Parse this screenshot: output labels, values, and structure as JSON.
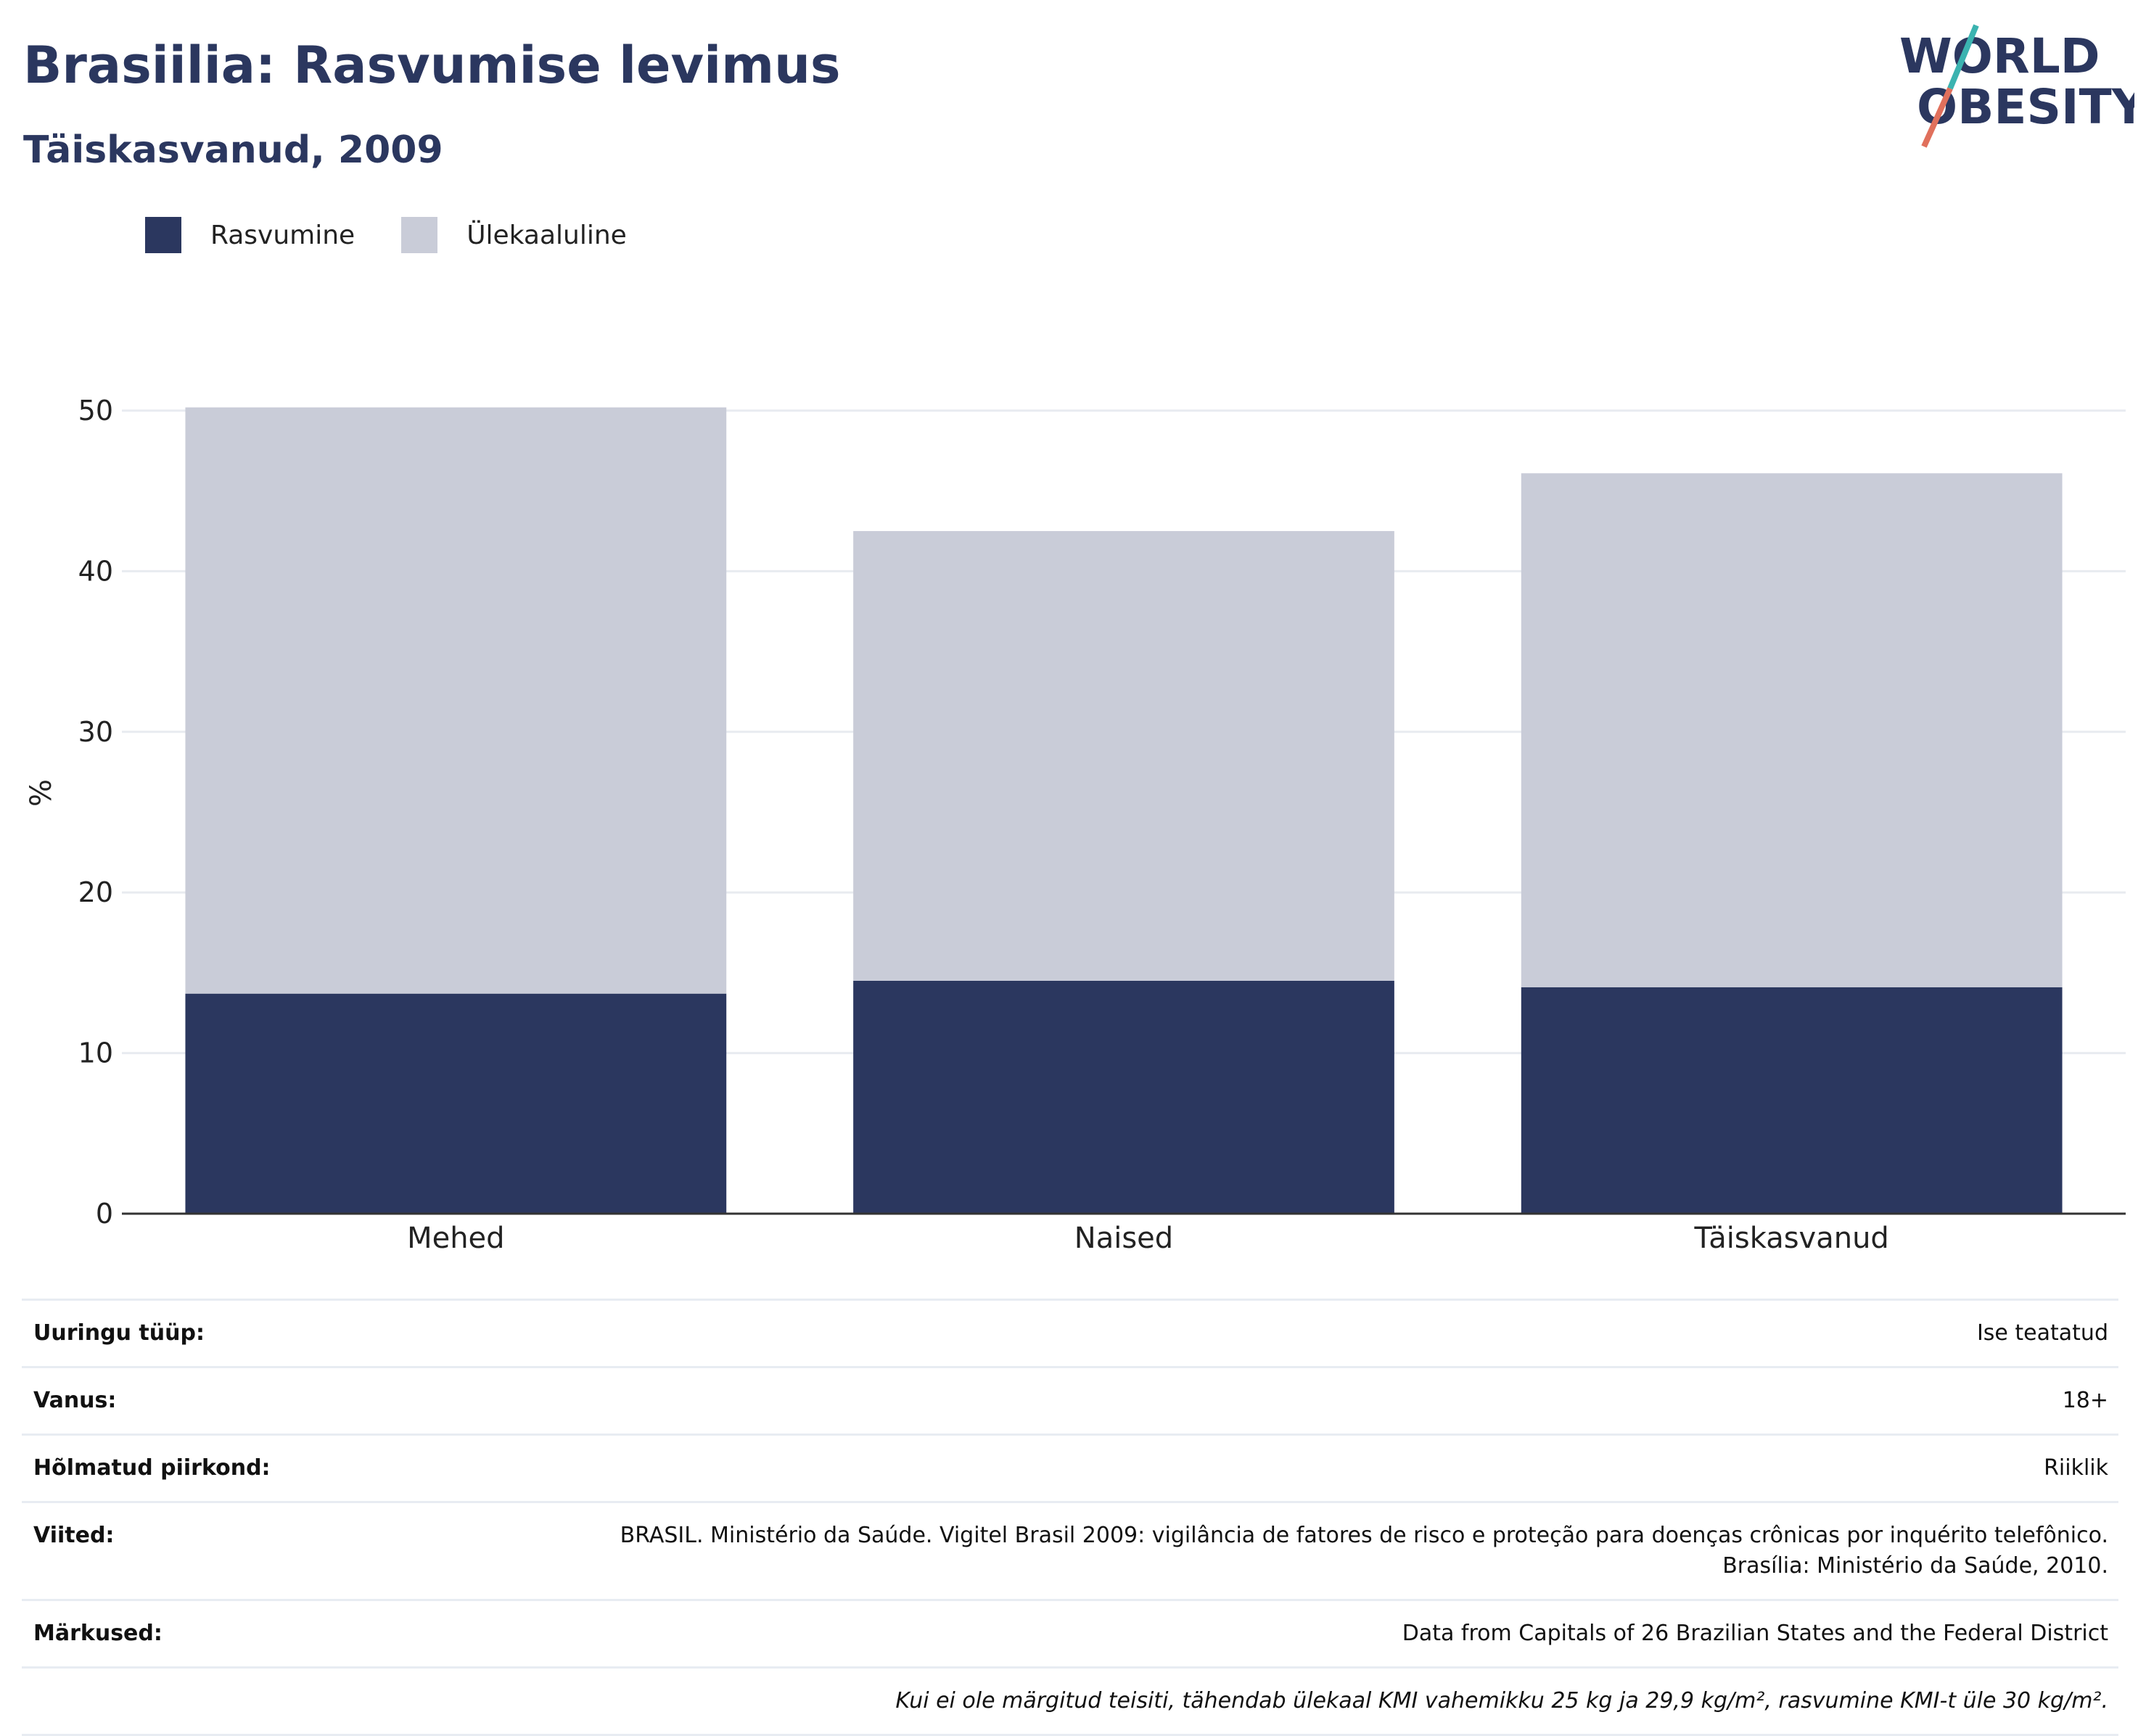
{
  "title": "Brasiilia: Rasvumise levimus",
  "subtitle": "Täiskasvanud, 2009",
  "logo": {
    "line1": "WORLD",
    "line2": "OBESITY"
  },
  "colors": {
    "obesity": "#2b375f",
    "overweight": "#c9ccd8",
    "title": "#2b375f",
    "logo_teal": "#3bb3b0",
    "logo_coral": "#e0705c"
  },
  "legend": [
    {
      "label": "Rasvumine",
      "color": "#2b375f"
    },
    {
      "label": "Ülekaaluline",
      "color": "#c9ccd8"
    }
  ],
  "chart_data": {
    "type": "bar",
    "stacked": true,
    "categories": [
      "Mehed",
      "Naised",
      "Täiskasvanud"
    ],
    "series": [
      {
        "name": "Rasvumine",
        "values": [
          13.7,
          14.5,
          14.1
        ]
      },
      {
        "name": "Ülekaaluline",
        "values": [
          36.5,
          28.0,
          32.0
        ]
      }
    ],
    "ylabel": "%",
    "ylim": [
      0,
      50
    ],
    "yticks": [
      0,
      10,
      20,
      30,
      40,
      50
    ],
    "grid": true,
    "legend_position": "top-left"
  },
  "info": {
    "rows": [
      {
        "label": "Uuringu tüüp:",
        "value": "Ise teatatud"
      },
      {
        "label": "Vanus:",
        "value": "18+"
      },
      {
        "label": "Hõlmatud piirkond:",
        "value": "Riiklik"
      },
      {
        "label": "Viited:",
        "value": "BRASIL. Ministério da Saúde. Vigitel Brasil 2009: vigilância de fatores de risco e proteção para doenças crônicas por inquérito telefônico.\nBrasília: Ministério da Saúde, 2010."
      },
      {
        "label": "Märkused:",
        "value": "Data from Capitals of 26 Brazilian States and the Federal District"
      }
    ],
    "footnote": "Kui ei ole märgitud teisiti, tähendab ülekaal KMI vahemikku 25 kg ja 29,9 kg/m², rasvumine KMI-t üle 30 kg/m²."
  }
}
